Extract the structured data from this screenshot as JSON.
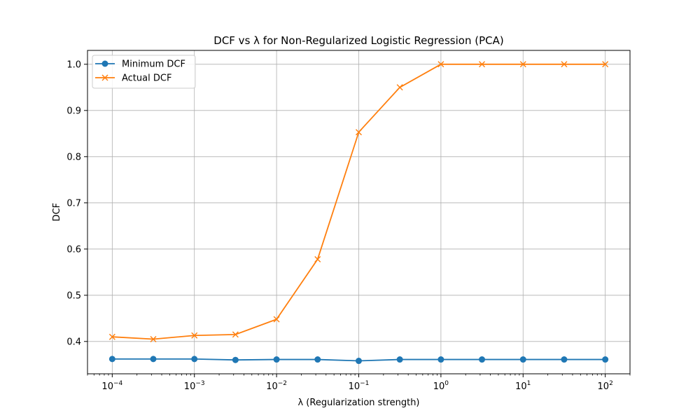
{
  "chart_data": {
    "type": "line",
    "title": "DCF vs λ for Non-Regularized Logistic Regression (PCA)",
    "xlabel": "λ (Regularization strength)",
    "ylabel": "DCF",
    "xscale": "log",
    "xlim": [
      5e-05,
      200
    ],
    "ylim": [
      0.33,
      1.03
    ],
    "x": [
      0.0001,
      0.000316,
      0.001,
      0.00316,
      0.01,
      0.0316,
      0.1,
      0.316,
      1,
      3.16,
      10,
      31.6,
      100
    ],
    "x_tick_labels": [
      {
        "value": 0.0001,
        "base": "10",
        "exp": "−4"
      },
      {
        "value": 0.001,
        "base": "10",
        "exp": "−3"
      },
      {
        "value": 0.01,
        "base": "10",
        "exp": "−2"
      },
      {
        "value": 0.1,
        "base": "10",
        "exp": "−1"
      },
      {
        "value": 1,
        "base": "10",
        "exp": "0"
      },
      {
        "value": 10,
        "base": "10",
        "exp": "1"
      },
      {
        "value": 100,
        "base": "10",
        "exp": "2"
      }
    ],
    "y_ticks": [
      0.4,
      0.5,
      0.6,
      0.7,
      0.8,
      0.9,
      1.0
    ],
    "y_tick_labels": [
      "0.4",
      "0.5",
      "0.6",
      "0.7",
      "0.8",
      "0.9",
      "1.0"
    ],
    "grid": true,
    "legend_position": "top-left",
    "series": [
      {
        "name": "Minimum DCF",
        "color": "#1f77b4",
        "marker": "circle",
        "values": [
          0.362,
          0.362,
          0.362,
          0.36,
          0.361,
          0.361,
          0.358,
          0.361,
          0.361,
          0.361,
          0.361,
          0.361,
          0.361
        ]
      },
      {
        "name": "Actual DCF",
        "color": "#ff7f0e",
        "marker": "x",
        "values": [
          0.41,
          0.405,
          0.413,
          0.415,
          0.448,
          0.578,
          0.853,
          0.95,
          1.0,
          1.0,
          1.0,
          1.0,
          1.0
        ]
      }
    ]
  }
}
